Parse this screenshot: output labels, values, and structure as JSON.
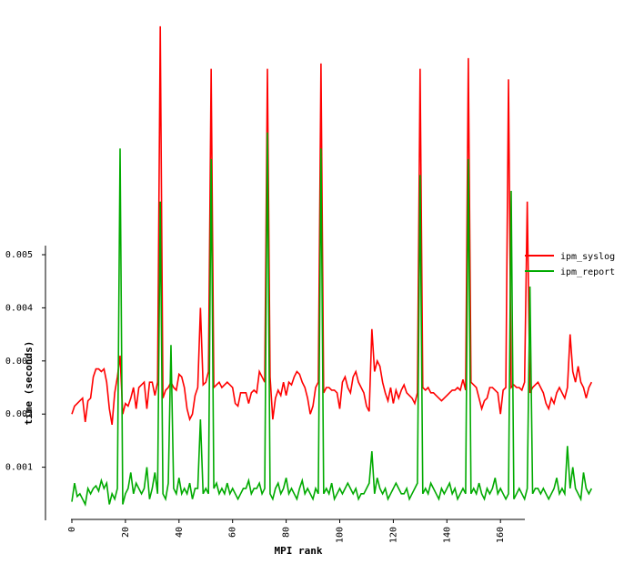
{
  "chart_data": {
    "type": "line",
    "xlabel": "MPI rank",
    "ylabel": "time (seconds)",
    "xlim": [
      -1,
      169
    ],
    "ylim": [
      0,
      0.0052
    ],
    "ylim_note": "top series peaks exceed the y axis and run to about 0.0095",
    "xticks": [
      0,
      20,
      40,
      60,
      80,
      100,
      120,
      140,
      160
    ],
    "xtick_labels": [
      "0",
      "20",
      "40",
      "60",
      "80",
      "100",
      "120",
      "140",
      "160"
    ],
    "yticks": [
      0.001,
      0.002,
      0.003,
      0.004,
      0.005
    ],
    "ytick_labels": [
      "0.001",
      "0.002",
      "0.003",
      "0.004",
      "0.005"
    ],
    "grid": false,
    "legend_position": "right",
    "series": [
      {
        "name": "ipm_syslog",
        "color": "#ff0000",
        "values": [
          0.002,
          0.00215,
          0.0022,
          0.00225,
          0.0023,
          0.00185,
          0.00225,
          0.0023,
          0.0027,
          0.00285,
          0.00285,
          0.0028,
          0.00285,
          0.0026,
          0.0021,
          0.0018,
          0.0024,
          0.0027,
          0.0031,
          0.002,
          0.0022,
          0.00215,
          0.0023,
          0.0025,
          0.0021,
          0.0025,
          0.00255,
          0.0026,
          0.0021,
          0.0026,
          0.0026,
          0.00235,
          0.0026,
          0.0093,
          0.0023,
          0.00245,
          0.0025,
          0.0026,
          0.0025,
          0.00245,
          0.00275,
          0.0027,
          0.0025,
          0.0021,
          0.0019,
          0.002,
          0.00235,
          0.0025,
          0.004,
          0.00255,
          0.0026,
          0.0028,
          0.0085,
          0.0025,
          0.00255,
          0.0026,
          0.0025,
          0.00255,
          0.0026,
          0.00255,
          0.0025,
          0.0022,
          0.00215,
          0.0024,
          0.0024,
          0.0024,
          0.0022,
          0.0024,
          0.00245,
          0.0024,
          0.0028,
          0.0027,
          0.0026,
          0.0085,
          0.0027,
          0.0019,
          0.0023,
          0.00245,
          0.00235,
          0.0026,
          0.00235,
          0.0026,
          0.00255,
          0.0027,
          0.0028,
          0.00275,
          0.0026,
          0.0025,
          0.0023,
          0.002,
          0.00215,
          0.0025,
          0.0026,
          0.0086,
          0.0024,
          0.0025,
          0.0025,
          0.00245,
          0.00245,
          0.0024,
          0.0021,
          0.0026,
          0.0027,
          0.0025,
          0.0024,
          0.0027,
          0.0028,
          0.0026,
          0.0025,
          0.0024,
          0.00215,
          0.00205,
          0.0036,
          0.0028,
          0.003,
          0.0029,
          0.0026,
          0.0024,
          0.00225,
          0.0025,
          0.0022,
          0.00245,
          0.0023,
          0.00245,
          0.00255,
          0.0024,
          0.00235,
          0.0023,
          0.0022,
          0.0024,
          0.0085,
          0.0025,
          0.00245,
          0.0025,
          0.0024,
          0.0024,
          0.00235,
          0.0023,
          0.00225,
          0.0023,
          0.00235,
          0.0024,
          0.00245,
          0.00245,
          0.0025,
          0.00245,
          0.00265,
          0.00245,
          0.0087,
          0.0026,
          0.00255,
          0.0025,
          0.0023,
          0.0021,
          0.00225,
          0.0023,
          0.0025,
          0.0025,
          0.00245,
          0.0024,
          0.002,
          0.00245,
          0.0025,
          0.0083,
          0.0025,
          0.00255,
          0.0025,
          0.0025,
          0.00245,
          0.0026,
          0.006,
          0.0024,
          0.0025,
          0.00255,
          0.0026,
          0.0025,
          0.0024,
          0.0022,
          0.0021,
          0.0023,
          0.0022,
          0.0024,
          0.0025,
          0.0024,
          0.0023,
          0.0025,
          0.0035,
          0.0028,
          0.0026,
          0.0029,
          0.0026,
          0.0025,
          0.0023,
          0.0025,
          0.0026
        ]
      },
      {
        "name": "ipm_report",
        "color": "#00aa00",
        "values": [
          0.00035,
          0.0007,
          0.00045,
          0.0005,
          0.0004,
          0.0003,
          0.0006,
          0.0005,
          0.0006,
          0.00065,
          0.00055,
          0.00075,
          0.0006,
          0.0007,
          0.0003,
          0.0005,
          0.0004,
          0.0006,
          0.007,
          0.0003,
          0.0005,
          0.0006,
          0.0009,
          0.0005,
          0.0007,
          0.0006,
          0.0005,
          0.0006,
          0.001,
          0.0004,
          0.0006,
          0.0009,
          0.0005,
          0.006,
          0.0005,
          0.0004,
          0.0007,
          0.0033,
          0.0006,
          0.0005,
          0.0008,
          0.0005,
          0.0006,
          0.0005,
          0.0007,
          0.0004,
          0.0006,
          0.0006,
          0.0019,
          0.0005,
          0.0006,
          0.0005,
          0.0068,
          0.0006,
          0.0007,
          0.0005,
          0.0006,
          0.0005,
          0.0007,
          0.0005,
          0.0006,
          0.0005,
          0.0004,
          0.0005,
          0.0006,
          0.0006,
          0.00075,
          0.0005,
          0.0006,
          0.0006,
          0.0007,
          0.0005,
          0.0006,
          0.0073,
          0.0005,
          0.0004,
          0.0006,
          0.0007,
          0.0005,
          0.0006,
          0.0008,
          0.0005,
          0.0006,
          0.0005,
          0.0004,
          0.0006,
          0.00075,
          0.0005,
          0.0006,
          0.0005,
          0.0004,
          0.0006,
          0.0005,
          0.007,
          0.0005,
          0.0006,
          0.0005,
          0.0007,
          0.0004,
          0.0005,
          0.0006,
          0.0005,
          0.0006,
          0.0007,
          0.0006,
          0.0005,
          0.0006,
          0.0004,
          0.0005,
          0.0005,
          0.0006,
          0.0007,
          0.0013,
          0.0005,
          0.0008,
          0.0006,
          0.0005,
          0.0006,
          0.0004,
          0.0005,
          0.0006,
          0.0007,
          0.0006,
          0.0005,
          0.0005,
          0.0006,
          0.0004,
          0.0005,
          0.0006,
          0.0007,
          0.0065,
          0.0005,
          0.0006,
          0.0005,
          0.0007,
          0.0006,
          0.0005,
          0.0004,
          0.0006,
          0.0005,
          0.0006,
          0.0007,
          0.0005,
          0.0006,
          0.0004,
          0.0005,
          0.0006,
          0.0005,
          0.0068,
          0.0005,
          0.0006,
          0.0005,
          0.0007,
          0.0005,
          0.0004,
          0.0006,
          0.0005,
          0.0006,
          0.0008,
          0.0005,
          0.0006,
          0.0005,
          0.0004,
          0.0005,
          0.0062,
          0.0004,
          0.0005,
          0.0006,
          0.0005,
          0.0004,
          0.0006,
          0.0044,
          0.0005,
          0.0006,
          0.0006,
          0.0005,
          0.0006,
          0.0005,
          0.0004,
          0.0005,
          0.0006,
          0.0008,
          0.0005,
          0.0006,
          0.0005,
          0.0014,
          0.0006,
          0.001,
          0.0006,
          0.0005,
          0.0004,
          0.0009,
          0.0006,
          0.0005,
          0.0006
        ]
      }
    ]
  }
}
